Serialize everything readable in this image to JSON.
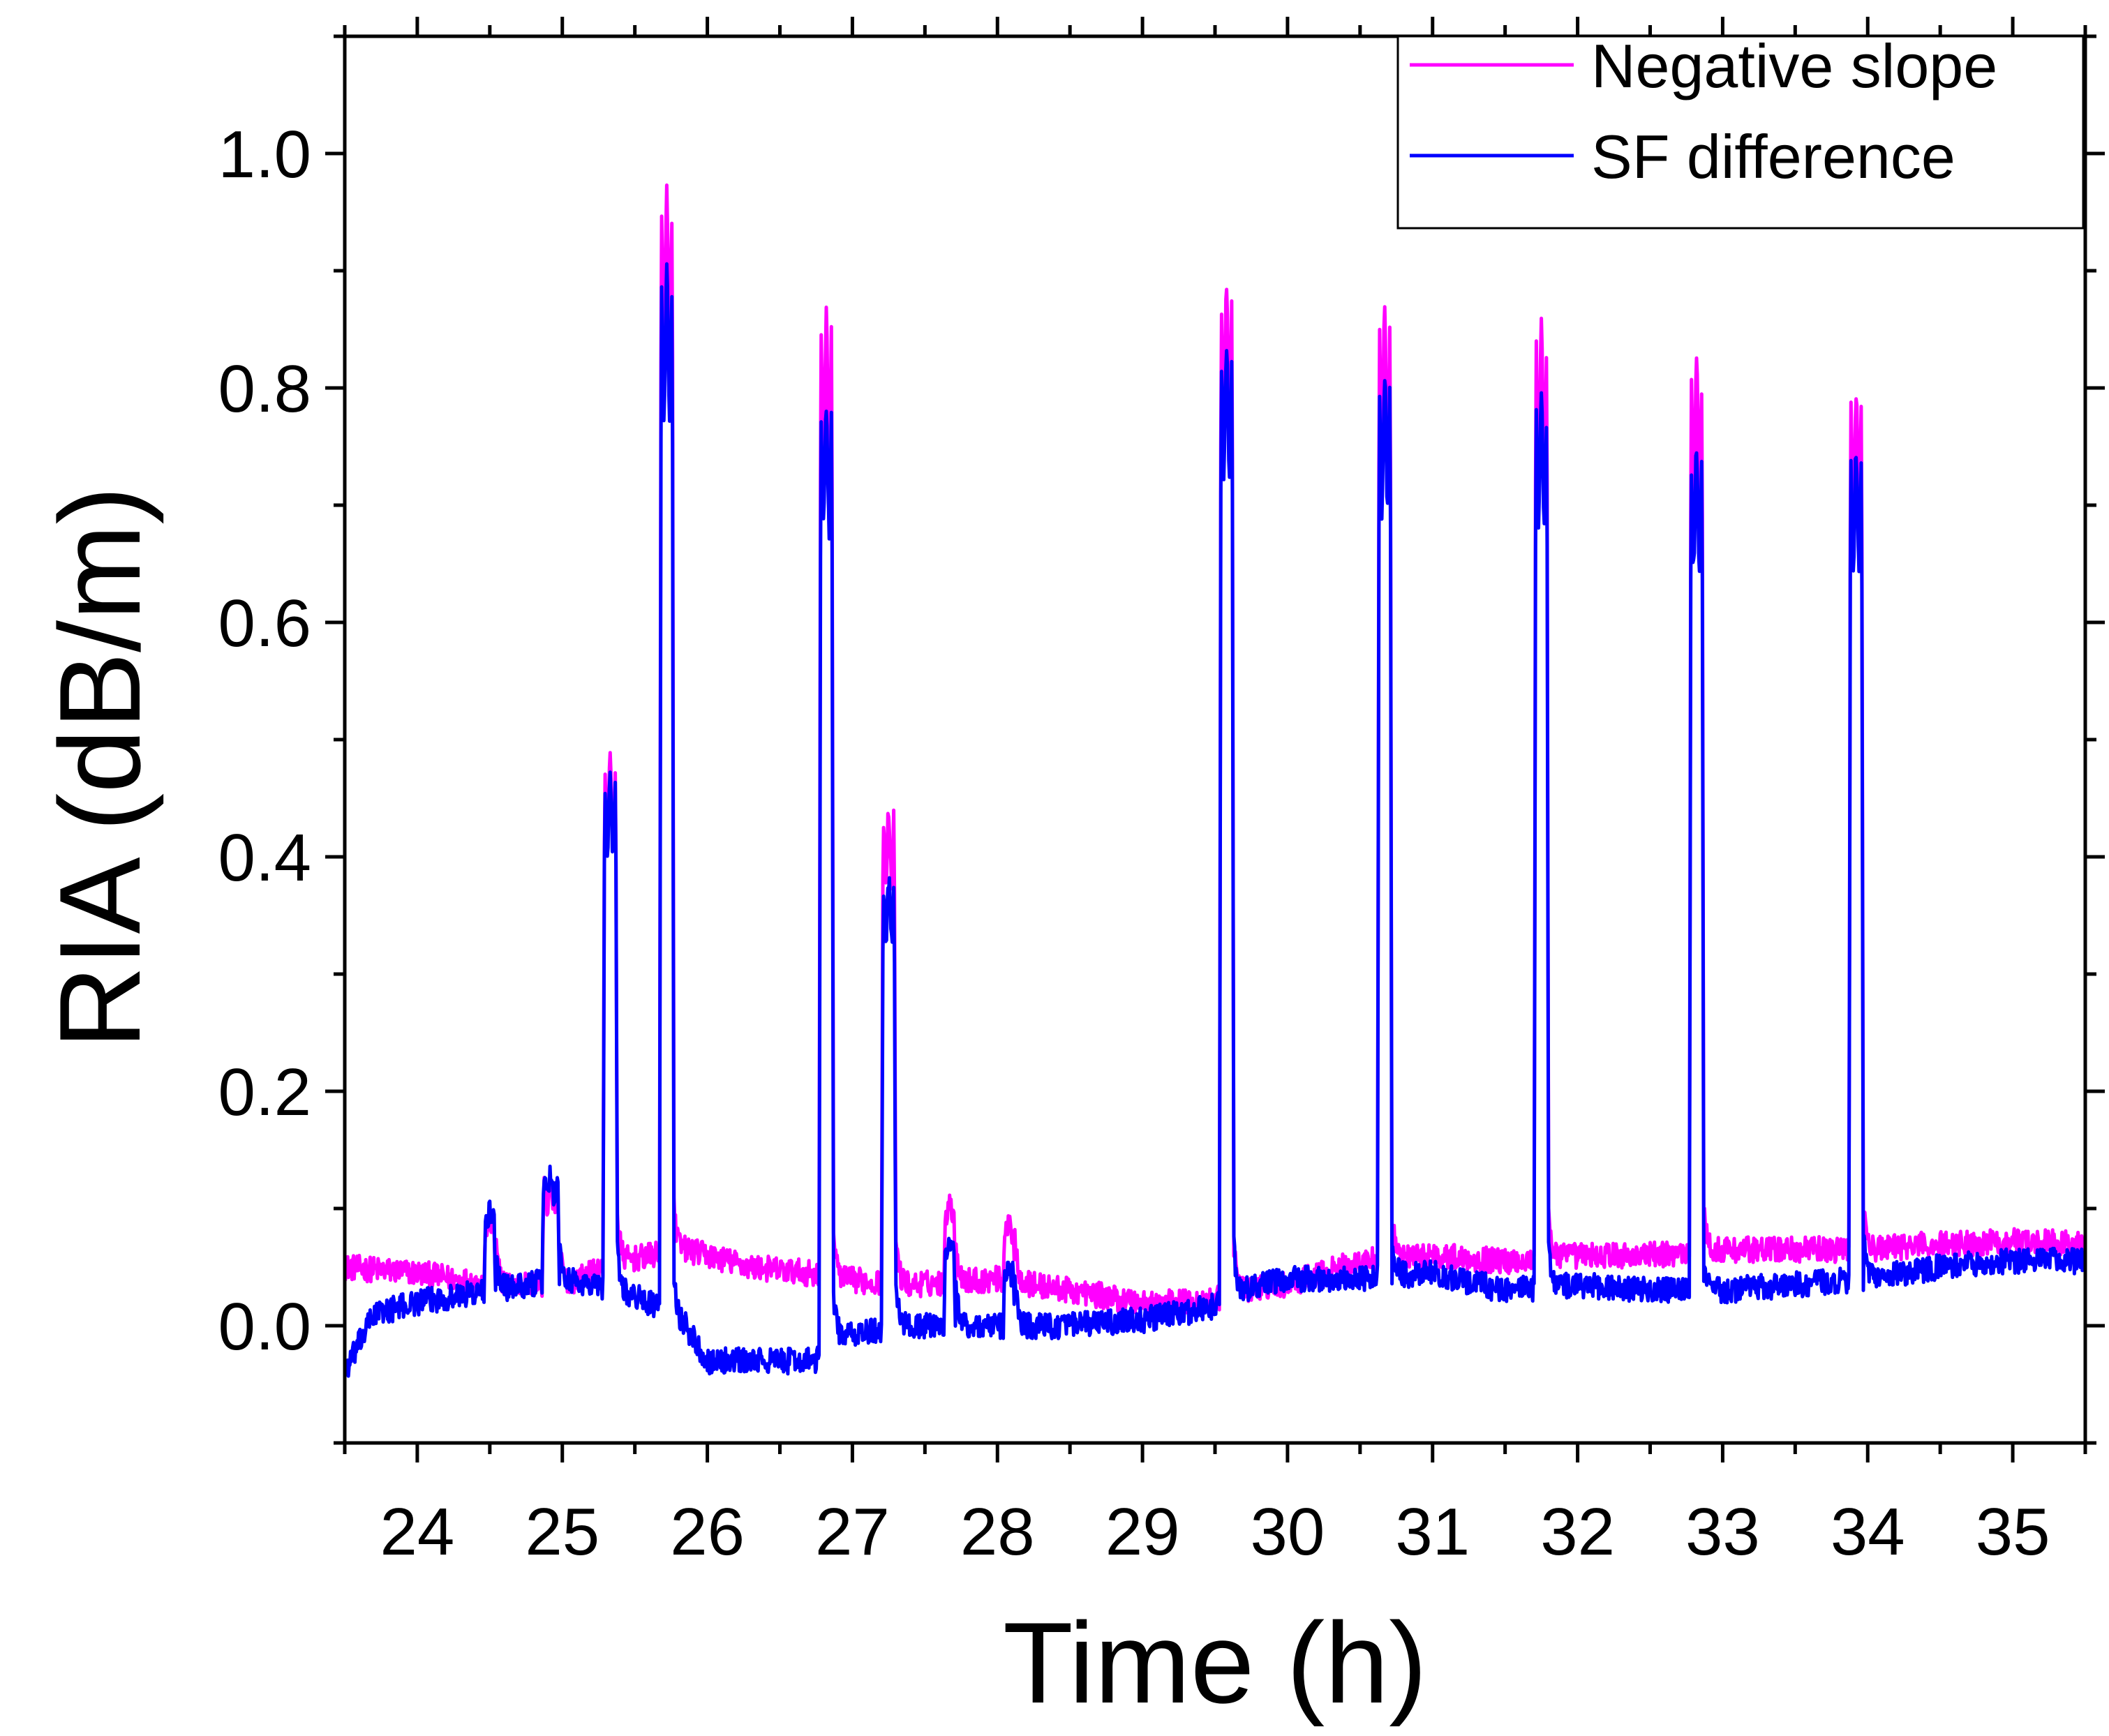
{
  "chart_data": {
    "type": "line",
    "xlabel": "Time (h)",
    "ylabel": "RIA (dB/m)",
    "xlim": [
      23.5,
      35.5
    ],
    "ylim": [
      -0.1,
      1.1
    ],
    "xticks": [
      24,
      25,
      26,
      27,
      28,
      29,
      30,
      31,
      32,
      33,
      34,
      35
    ],
    "xtick_labels": [
      "24",
      "25",
      "26",
      "27",
      "28",
      "29",
      "30",
      "31",
      "32",
      "33",
      "34",
      "35"
    ],
    "yticks": [
      0.0,
      0.2,
      0.4,
      0.6,
      0.8,
      1.0
    ],
    "ytick_labels": [
      "0.0",
      "0.2",
      "0.4",
      "0.6",
      "0.8",
      "1.0"
    ],
    "legend_position": "top-right",
    "series": [
      {
        "name": "Negative slope",
        "color": "#ff00ff",
        "baseline": [
          [
            23.5,
            0.05
          ],
          [
            24.0,
            0.045
          ],
          [
            24.5,
            0.035
          ],
          [
            25.0,
            0.035
          ],
          [
            25.4,
            0.055
          ],
          [
            25.85,
            0.065
          ],
          [
            26.3,
            0.05
          ],
          [
            26.7,
            0.045
          ],
          [
            26.9,
            0.04
          ],
          [
            27.4,
            0.035
          ],
          [
            28.0,
            0.04
          ],
          [
            28.5,
            0.03
          ],
          [
            29.0,
            0.02
          ],
          [
            29.4,
            0.02
          ],
          [
            29.7,
            0.03
          ],
          [
            30.0,
            0.035
          ],
          [
            30.5,
            0.055
          ],
          [
            31.0,
            0.06
          ],
          [
            31.5,
            0.055
          ],
          [
            32.0,
            0.06
          ],
          [
            32.5,
            0.06
          ],
          [
            33.0,
            0.065
          ],
          [
            33.5,
            0.065
          ],
          [
            34.0,
            0.065
          ],
          [
            34.5,
            0.07
          ],
          [
            35.0,
            0.072
          ],
          [
            35.5,
            0.07
          ]
        ],
        "peaks": [
          {
            "t": 24.5,
            "w": 0.08,
            "value": 0.09
          },
          {
            "t": 24.92,
            "w": 0.12,
            "value": 0.12
          },
          {
            "t": 25.33,
            "w": 0.1,
            "value": 0.48
          },
          {
            "t": 25.72,
            "w": 0.1,
            "value": 0.97
          },
          {
            "t": 26.82,
            "w": 0.1,
            "value": 0.86
          },
          {
            "t": 27.25,
            "w": 0.1,
            "value": 0.44
          },
          {
            "t": 27.67,
            "w": 0.08,
            "value": 0.11
          },
          {
            "t": 28.08,
            "w": 0.08,
            "value": 0.09
          },
          {
            "t": 29.58,
            "w": 0.1,
            "value": 0.89
          },
          {
            "t": 30.67,
            "w": 0.1,
            "value": 0.86
          },
          {
            "t": 31.75,
            "w": 0.1,
            "value": 0.85
          },
          {
            "t": 32.82,
            "w": 0.1,
            "value": 0.82
          },
          {
            "t": 33.92,
            "w": 0.1,
            "value": 0.8
          }
        ]
      },
      {
        "name": "SF difference",
        "color": "#0000ff",
        "baseline": [
          [
            23.5,
            -0.04
          ],
          [
            23.7,
            0.01
          ],
          [
            24.0,
            0.02
          ],
          [
            24.5,
            0.03
          ],
          [
            25.0,
            0.04
          ],
          [
            25.4,
            0.03
          ],
          [
            25.6,
            0.02
          ],
          [
            25.85,
            0.0
          ],
          [
            26.0,
            -0.03
          ],
          [
            26.4,
            -0.03
          ],
          [
            26.75,
            -0.03
          ],
          [
            26.9,
            -0.01
          ],
          [
            27.4,
            0.0
          ],
          [
            28.0,
            0.0
          ],
          [
            28.5,
            0.0
          ],
          [
            29.0,
            0.005
          ],
          [
            29.45,
            0.015
          ],
          [
            29.7,
            0.03
          ],
          [
            30.0,
            0.04
          ],
          [
            30.5,
            0.04
          ],
          [
            31.0,
            0.045
          ],
          [
            31.5,
            0.03
          ],
          [
            32.0,
            0.035
          ],
          [
            32.5,
            0.03
          ],
          [
            33.0,
            0.03
          ],
          [
            33.5,
            0.035
          ],
          [
            34.0,
            0.04
          ],
          [
            34.5,
            0.05
          ],
          [
            35.0,
            0.055
          ],
          [
            35.5,
            0.055
          ]
        ],
        "peaks": [
          {
            "t": 24.5,
            "w": 0.08,
            "value": 0.1
          },
          {
            "t": 24.92,
            "w": 0.12,
            "value": 0.13
          },
          {
            "t": 25.33,
            "w": 0.1,
            "value": 0.47
          },
          {
            "t": 25.72,
            "w": 0.1,
            "value": 0.9
          },
          {
            "t": 26.82,
            "w": 0.1,
            "value": 0.79
          },
          {
            "t": 27.25,
            "w": 0.1,
            "value": 0.38
          },
          {
            "t": 27.67,
            "w": 0.08,
            "value": 0.07
          },
          {
            "t": 28.08,
            "w": 0.08,
            "value": 0.05
          },
          {
            "t": 29.58,
            "w": 0.1,
            "value": 0.84
          },
          {
            "t": 30.67,
            "w": 0.1,
            "value": 0.81
          },
          {
            "t": 31.75,
            "w": 0.1,
            "value": 0.79
          },
          {
            "t": 32.82,
            "w": 0.1,
            "value": 0.75
          },
          {
            "t": 33.92,
            "w": 0.1,
            "value": 0.75
          }
        ]
      }
    ]
  }
}
